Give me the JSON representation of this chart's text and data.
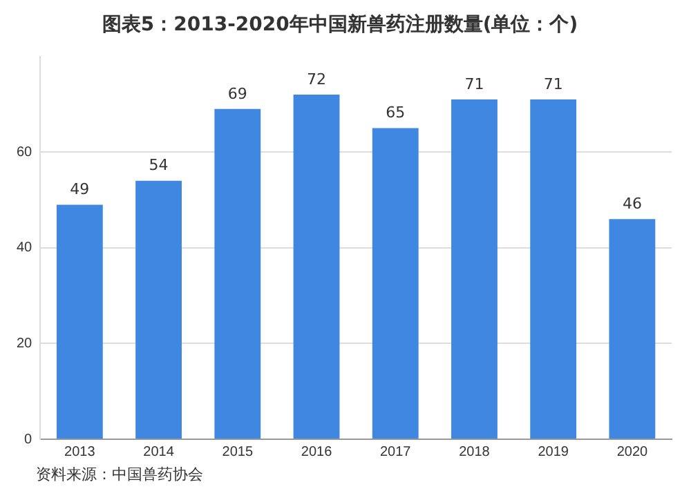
{
  "chart_data": {
    "type": "bar",
    "title": "图表5：2013-2020年中国新兽药注册数量(单位：个)",
    "categories": [
      "2013",
      "2014",
      "2015",
      "2016",
      "2017",
      "2018",
      "2019",
      "2020"
    ],
    "values": [
      49,
      54,
      69,
      72,
      65,
      71,
      71,
      46
    ],
    "color": "#3f87e0",
    "ylim": [
      0,
      80
    ],
    "yticks": [
      0,
      20,
      40,
      60
    ],
    "grid": "y",
    "data_labels": true,
    "legend": false,
    "annotations": [
      "资料来源：中国兽药协会"
    ]
  }
}
